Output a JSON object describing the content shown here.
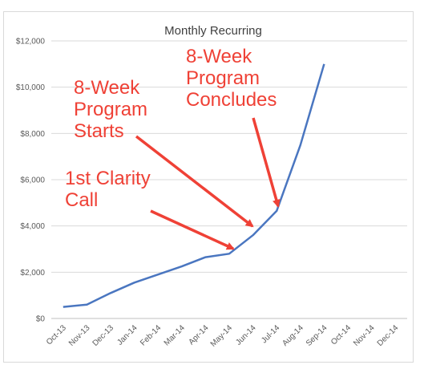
{
  "chart_data": {
    "type": "line",
    "title": "Monthly Recurring",
    "categories": [
      "Oct-13",
      "Nov-13",
      "Dec-13",
      "Jan-14",
      "Feb-14",
      "Mar-14",
      "Apr-14",
      "May-14",
      "Jun-14",
      "Jul-14",
      "Aug-14",
      "Sep-14",
      "Oct-14",
      "Nov-14",
      "Dec-14"
    ],
    "values": [
      500,
      600,
      1100,
      1550,
      1900,
      2250,
      2650,
      2800,
      3600,
      4650,
      7500,
      11000,
      null,
      null,
      null
    ],
    "ylim": [
      0,
      12000
    ],
    "yticks": [
      0,
      2000,
      4000,
      6000,
      8000,
      10000,
      12000
    ],
    "ytick_labels": [
      "$0",
      "$2,000",
      "$4,000",
      "$6,000",
      "$8,000",
      "$10,000",
      "$12,000"
    ],
    "xlabel": "",
    "ylabel": "",
    "grid": true,
    "line_color": "#4a76c0",
    "annotation_color": "#ef4136",
    "annotations": [
      {
        "lines": [
          "8-Week",
          "Program",
          "Concludes"
        ],
        "target_category": "Jul-14"
      },
      {
        "lines": [
          "8-Week",
          "Program",
          "Starts"
        ],
        "target_category": "Jun-14"
      },
      {
        "lines": [
          "1st Clarity",
          "Call"
        ],
        "target_category": "May-14"
      }
    ]
  }
}
